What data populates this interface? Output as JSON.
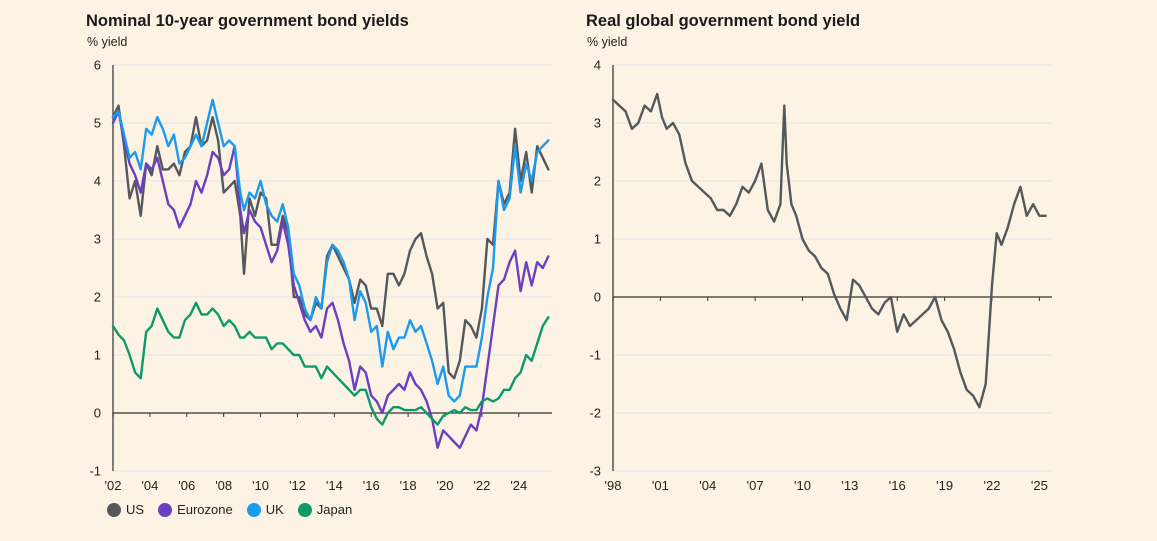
{
  "chart_data": [
    {
      "type": "line",
      "title": "Nominal 10-year government bond yields",
      "ylabel": "% yield",
      "xlabel": "",
      "ylim": [
        -1,
        6
      ],
      "xlim": [
        2002,
        2025.8
      ],
      "yticks": [
        6,
        5,
        4,
        3,
        2,
        1,
        0,
        -1
      ],
      "xticks": [
        2002,
        2004,
        2006,
        2008,
        2010,
        2012,
        2014,
        2016,
        2018,
        2020,
        2022,
        2024
      ],
      "xtick_labels": [
        "'02",
        "'04",
        "'06",
        "'08",
        "'10",
        "'12",
        "'14",
        "'16",
        "'18",
        "'20",
        "'22",
        "'24"
      ],
      "grid": true,
      "legend": "bottom-left",
      "series": [
        {
          "name": "US",
          "color": "#55585b",
          "x": [
            2002,
            2002.3,
            2002.6,
            2002.9,
            2003.2,
            2003.5,
            2003.8,
            2004.1,
            2004.4,
            2004.7,
            2005,
            2005.3,
            2005.6,
            2005.9,
            2006.2,
            2006.5,
            2006.8,
            2007.1,
            2007.4,
            2007.7,
            2008,
            2008.3,
            2008.6,
            2008.9,
            2009.1,
            2009.4,
            2009.7,
            2010,
            2010.3,
            2010.6,
            2010.9,
            2011.2,
            2011.5,
            2011.8,
            2012.1,
            2012.4,
            2012.7,
            2013,
            2013.3,
            2013.6,
            2013.9,
            2014.2,
            2014.5,
            2014.8,
            2015.1,
            2015.4,
            2015.7,
            2016,
            2016.3,
            2016.6,
            2016.9,
            2017.2,
            2017.5,
            2017.8,
            2018.1,
            2018.4,
            2018.7,
            2019,
            2019.3,
            2019.6,
            2019.9,
            2020.2,
            2020.5,
            2020.8,
            2021.1,
            2021.4,
            2021.7,
            2022,
            2022.3,
            2022.6,
            2022.9,
            2023.2,
            2023.5,
            2023.8,
            2024.1,
            2024.4,
            2024.7,
            2025,
            2025.3,
            2025.6
          ],
          "values": [
            5.1,
            5.3,
            4.6,
            3.7,
            4.0,
            3.4,
            4.3,
            4.1,
            4.6,
            4.2,
            4.2,
            4.3,
            4.1,
            4.5,
            4.6,
            5.1,
            4.6,
            4.7,
            5.1,
            4.7,
            3.8,
            3.9,
            4.0,
            3.4,
            2.4,
            3.7,
            3.4,
            3.8,
            3.7,
            2.9,
            2.9,
            3.4,
            3.1,
            2.0,
            2.0,
            1.7,
            1.6,
            1.9,
            1.8,
            2.7,
            2.9,
            2.7,
            2.5,
            2.3,
            1.9,
            2.3,
            2.2,
            1.8,
            1.8,
            1.5,
            2.4,
            2.4,
            2.2,
            2.4,
            2.8,
            3.0,
            3.1,
            2.7,
            2.4,
            1.8,
            1.9,
            0.7,
            0.6,
            0.9,
            1.6,
            1.5,
            1.3,
            1.8,
            3.0,
            2.9,
            4.0,
            3.6,
            3.8,
            4.9,
            4.0,
            4.5,
            3.8,
            4.6,
            4.4,
            4.2
          ]
        },
        {
          "name": "Eurozone",
          "color": "#6b3fc0",
          "x": [
            2002,
            2002.3,
            2002.6,
            2002.9,
            2003.2,
            2003.5,
            2003.8,
            2004.1,
            2004.4,
            2004.7,
            2005,
            2005.3,
            2005.6,
            2005.9,
            2006.2,
            2006.5,
            2006.8,
            2007.1,
            2007.4,
            2007.7,
            2008,
            2008.3,
            2008.6,
            2008.9,
            2009.1,
            2009.4,
            2009.7,
            2010,
            2010.3,
            2010.6,
            2010.9,
            2011.2,
            2011.5,
            2011.8,
            2012.1,
            2012.4,
            2012.7,
            2013,
            2013.3,
            2013.6,
            2013.9,
            2014.2,
            2014.5,
            2014.8,
            2015.1,
            2015.4,
            2015.7,
            2016,
            2016.3,
            2016.6,
            2016.9,
            2017.2,
            2017.5,
            2017.8,
            2018.1,
            2018.4,
            2018.7,
            2019,
            2019.3,
            2019.6,
            2019.9,
            2020.2,
            2020.5,
            2020.8,
            2021.1,
            2021.4,
            2021.7,
            2022,
            2022.3,
            2022.6,
            2022.9,
            2023.2,
            2023.5,
            2023.8,
            2024.1,
            2024.4,
            2024.7,
            2025,
            2025.3,
            2025.6
          ],
          "values": [
            5.0,
            5.2,
            4.7,
            4.3,
            4.1,
            3.8,
            4.3,
            4.2,
            4.4,
            4.0,
            3.6,
            3.5,
            3.2,
            3.4,
            3.6,
            4.0,
            3.8,
            4.1,
            4.5,
            4.4,
            4.1,
            4.2,
            4.6,
            3.5,
            3.1,
            3.5,
            3.3,
            3.2,
            2.9,
            2.6,
            2.8,
            3.3,
            2.9,
            2.2,
            1.9,
            1.6,
            1.4,
            1.5,
            1.3,
            1.8,
            1.9,
            1.6,
            1.2,
            0.9,
            0.4,
            0.8,
            0.7,
            0.3,
            0.2,
            0.0,
            0.3,
            0.4,
            0.5,
            0.4,
            0.7,
            0.5,
            0.4,
            0.2,
            -0.1,
            -0.6,
            -0.3,
            -0.4,
            -0.5,
            -0.6,
            -0.4,
            -0.2,
            -0.3,
            0.1,
            0.8,
            1.5,
            2.2,
            2.3,
            2.6,
            2.8,
            2.1,
            2.6,
            2.2,
            2.6,
            2.5,
            2.7
          ]
        },
        {
          "name": "UK",
          "color": "#1a9bf0",
          "x": [
            2002,
            2002.3,
            2002.6,
            2002.9,
            2003.2,
            2003.5,
            2003.8,
            2004.1,
            2004.4,
            2004.7,
            2005,
            2005.3,
            2005.6,
            2005.9,
            2006.2,
            2006.5,
            2006.8,
            2007.1,
            2007.4,
            2007.7,
            2008,
            2008.3,
            2008.6,
            2008.9,
            2009.1,
            2009.4,
            2009.7,
            2010,
            2010.3,
            2010.6,
            2010.9,
            2011.2,
            2011.5,
            2011.8,
            2012.1,
            2012.4,
            2012.7,
            2013,
            2013.3,
            2013.6,
            2013.9,
            2014.2,
            2014.5,
            2014.8,
            2015.1,
            2015.4,
            2015.7,
            2016,
            2016.3,
            2016.6,
            2016.9,
            2017.2,
            2017.5,
            2017.8,
            2018.1,
            2018.4,
            2018.7,
            2019,
            2019.3,
            2019.6,
            2019.9,
            2020.2,
            2020.5,
            2020.8,
            2021.1,
            2021.4,
            2021.7,
            2022,
            2022.3,
            2022.6,
            2022.9,
            2023.2,
            2023.5,
            2023.8,
            2024.1,
            2024.4,
            2024.7,
            2025,
            2025.3,
            2025.6
          ],
          "values": [
            5.1,
            5.2,
            4.8,
            4.4,
            4.5,
            4.2,
            4.9,
            4.8,
            5.1,
            4.9,
            4.6,
            4.8,
            4.3,
            4.4,
            4.6,
            4.8,
            4.6,
            5.0,
            5.4,
            5.0,
            4.6,
            4.7,
            4.6,
            3.8,
            3.5,
            3.8,
            3.7,
            4.0,
            3.6,
            3.4,
            3.3,
            3.6,
            3.2,
            2.4,
            2.2,
            1.8,
            1.6,
            2.0,
            1.8,
            2.6,
            2.9,
            2.8,
            2.6,
            2.3,
            1.6,
            2.1,
            1.9,
            1.4,
            1.5,
            0.8,
            1.4,
            1.1,
            1.3,
            1.3,
            1.6,
            1.4,
            1.5,
            1.2,
            0.9,
            0.5,
            0.8,
            0.3,
            0.2,
            0.3,
            0.8,
            0.8,
            0.8,
            1.3,
            2.0,
            2.5,
            4.0,
            3.5,
            3.7,
            4.6,
            3.8,
            4.3,
            4.0,
            4.5,
            4.6,
            4.7
          ]
        },
        {
          "name": "Japan",
          "color": "#0e9a68",
          "x": [
            2002,
            2002.3,
            2002.6,
            2002.9,
            2003.2,
            2003.5,
            2003.8,
            2004.1,
            2004.4,
            2004.7,
            2005,
            2005.3,
            2005.6,
            2005.9,
            2006.2,
            2006.5,
            2006.8,
            2007.1,
            2007.4,
            2007.7,
            2008,
            2008.3,
            2008.6,
            2008.9,
            2009.1,
            2009.4,
            2009.7,
            2010,
            2010.3,
            2010.6,
            2010.9,
            2011.2,
            2011.5,
            2011.8,
            2012.1,
            2012.4,
            2012.7,
            2013,
            2013.3,
            2013.6,
            2013.9,
            2014.2,
            2014.5,
            2014.8,
            2015.1,
            2015.4,
            2015.7,
            2016,
            2016.3,
            2016.6,
            2016.9,
            2017.2,
            2017.5,
            2017.8,
            2018.1,
            2018.4,
            2018.7,
            2019,
            2019.3,
            2019.6,
            2019.9,
            2020.2,
            2020.5,
            2020.8,
            2021.1,
            2021.4,
            2021.7,
            2022,
            2022.3,
            2022.6,
            2022.9,
            2023.2,
            2023.5,
            2023.8,
            2024.1,
            2024.4,
            2024.7,
            2025,
            2025.3,
            2025.6
          ],
          "values": [
            1.5,
            1.35,
            1.25,
            1.0,
            0.7,
            0.6,
            1.4,
            1.5,
            1.8,
            1.6,
            1.4,
            1.3,
            1.3,
            1.6,
            1.7,
            1.9,
            1.7,
            1.7,
            1.8,
            1.7,
            1.5,
            1.6,
            1.5,
            1.3,
            1.3,
            1.4,
            1.3,
            1.3,
            1.3,
            1.1,
            1.2,
            1.2,
            1.1,
            1.0,
            1.0,
            0.8,
            0.8,
            0.8,
            0.6,
            0.8,
            0.7,
            0.6,
            0.5,
            0.4,
            0.3,
            0.4,
            0.4,
            0.1,
            -0.1,
            -0.2,
            0.0,
            0.1,
            0.1,
            0.05,
            0.05,
            0.05,
            0.1,
            0.0,
            -0.1,
            -0.2,
            -0.05,
            0.0,
            0.05,
            0.0,
            0.1,
            0.05,
            0.05,
            0.2,
            0.25,
            0.2,
            0.25,
            0.4,
            0.4,
            0.6,
            0.7,
            1.0,
            0.9,
            1.2,
            1.5,
            1.65
          ]
        }
      ]
    },
    {
      "type": "line",
      "title": "Real global government bond yield",
      "ylabel": "% yield",
      "xlabel": "",
      "ylim": [
        -3,
        4
      ],
      "xlim": [
        1998,
        2025.8
      ],
      "yticks": [
        4,
        3,
        2,
        1,
        0,
        -1,
        -2,
        -3
      ],
      "xticks": [
        1998,
        2001,
        2004,
        2007,
        2010,
        2013,
        2016,
        2019,
        2022,
        2025
      ],
      "xtick_labels": [
        "'98",
        "'01",
        "'04",
        "'07",
        "'10",
        "'13",
        "'16",
        "'19",
        "'22",
        "'25"
      ],
      "grid": true,
      "legend": "none",
      "series": [
        {
          "name": "Real global yield",
          "color": "#55585b",
          "x": [
            1998,
            1998.4,
            1998.8,
            1999.2,
            1999.6,
            2000,
            2000.4,
            2000.8,
            2001.1,
            2001.4,
            2001.8,
            2002.2,
            2002.6,
            2003,
            2003.4,
            2003.8,
            2004.2,
            2004.6,
            2005,
            2005.4,
            2005.8,
            2006.2,
            2006.6,
            2007,
            2007.4,
            2007.8,
            2008.2,
            2008.6,
            2008.85,
            2009,
            2009.3,
            2009.6,
            2010,
            2010.4,
            2010.8,
            2011.2,
            2011.6,
            2012,
            2012.4,
            2012.8,
            2013.2,
            2013.6,
            2014,
            2014.4,
            2014.8,
            2015.2,
            2015.6,
            2016,
            2016.4,
            2016.8,
            2017.2,
            2017.6,
            2018,
            2018.4,
            2018.8,
            2019.2,
            2019.6,
            2020,
            2020.4,
            2020.8,
            2021.2,
            2021.6,
            2022,
            2022.3,
            2022.6,
            2023,
            2023.4,
            2023.8,
            2024.2,
            2024.6,
            2025,
            2025.4
          ],
          "values": [
            3.4,
            3.3,
            3.2,
            2.9,
            3.0,
            3.3,
            3.2,
            3.5,
            3.1,
            2.9,
            3.0,
            2.8,
            2.3,
            2.0,
            1.9,
            1.8,
            1.7,
            1.5,
            1.5,
            1.4,
            1.6,
            1.9,
            1.8,
            2.0,
            2.3,
            1.5,
            1.3,
            1.6,
            3.3,
            2.3,
            1.6,
            1.4,
            1.0,
            0.8,
            0.7,
            0.5,
            0.4,
            0.05,
            -0.2,
            -0.4,
            0.3,
            0.2,
            0.0,
            -0.2,
            -0.3,
            -0.1,
            0.0,
            -0.6,
            -0.3,
            -0.5,
            -0.4,
            -0.3,
            -0.2,
            0.0,
            -0.4,
            -0.6,
            -0.9,
            -1.3,
            -1.6,
            -1.7,
            -1.9,
            -1.5,
            0.2,
            1.1,
            0.9,
            1.2,
            1.6,
            1.9,
            1.4,
            1.6,
            1.4,
            1.4
          ]
        }
      ]
    }
  ],
  "legend_items": [
    {
      "label": "US",
      "color": "#55585b"
    },
    {
      "label": "Eurozone",
      "color": "#6b3fc0"
    },
    {
      "label": "UK",
      "color": "#1a9bf0"
    },
    {
      "label": "Japan",
      "color": "#0e9a68"
    }
  ]
}
